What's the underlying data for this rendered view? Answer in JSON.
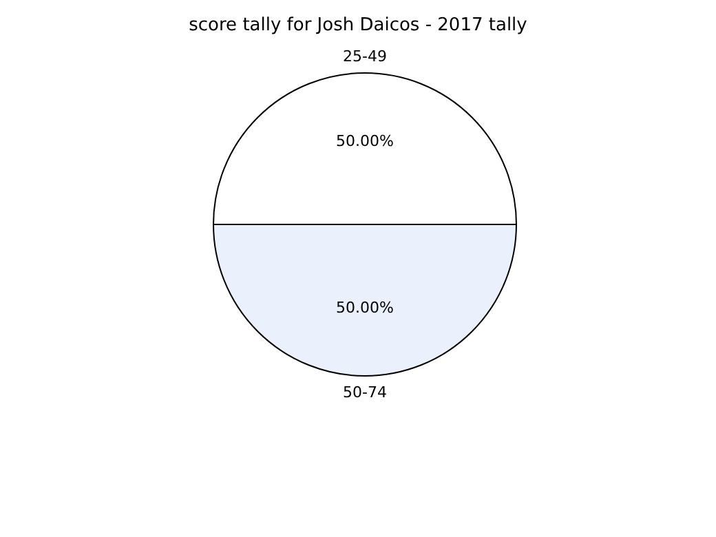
{
  "chart_data": {
    "type": "pie",
    "title": "score tally for Josh Daicos - 2017 tally",
    "categories": [
      "25-49",
      "50-74"
    ],
    "values": [
      50,
      50
    ],
    "colors": [
      "#ffffff",
      "#eaf0fc"
    ],
    "value_labels": [
      "50.00%",
      "50.00%"
    ],
    "legend": false
  }
}
